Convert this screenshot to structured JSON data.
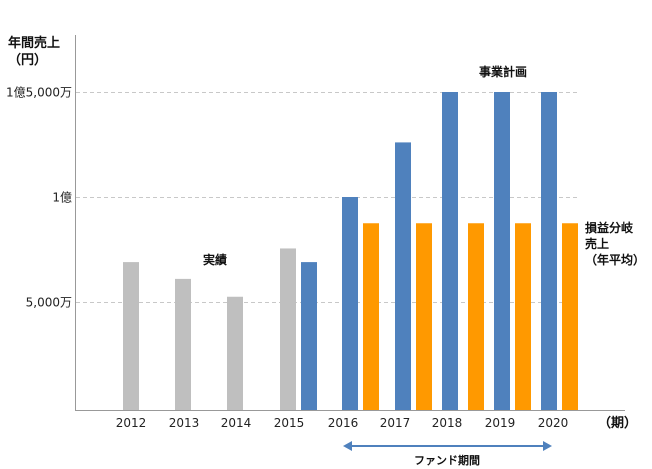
{
  "chart_data": {
    "type": "bar",
    "ylabel_line1": "年間売上",
    "ylabel_line2": "（円）",
    "xlabel": "（期）",
    "ylim": [
      0,
      15000
    ],
    "y_unit": "万円",
    "y_ticks": [
      {
        "value": 5000,
        "label": "5,000万"
      },
      {
        "value": 10000,
        "label": "1億"
      },
      {
        "value": 15000,
        "label": "1億5,000万"
      }
    ],
    "grid": true,
    "categories": [
      "2012",
      "2013",
      "2014",
      "2015",
      "2016",
      "2017",
      "2018",
      "2019",
      "2020"
    ],
    "series": [
      {
        "name": "実績",
        "color": "#bfbfbf",
        "values": [
          6900,
          6100,
          5250,
          7550,
          null,
          null,
          null,
          null,
          null
        ]
      },
      {
        "name": "事業計画",
        "color": "#4f81bd",
        "values": [
          null,
          null,
          null,
          6900,
          10000,
          12600,
          15000,
          15000,
          15000
        ]
      },
      {
        "name": "損益分岐売上（年平均）",
        "color": "#ff9900",
        "values": [
          null,
          null,
          null,
          null,
          8750,
          8750,
          8750,
          8750,
          8750
        ]
      }
    ],
    "annotations": {
      "actual": "実績",
      "plan": "事業計画",
      "breakeven_line1": "損益分岐",
      "breakeven_line2": "売上",
      "breakeven_line3": "（年平均）",
      "fund_period": "ファンド期間"
    }
  }
}
